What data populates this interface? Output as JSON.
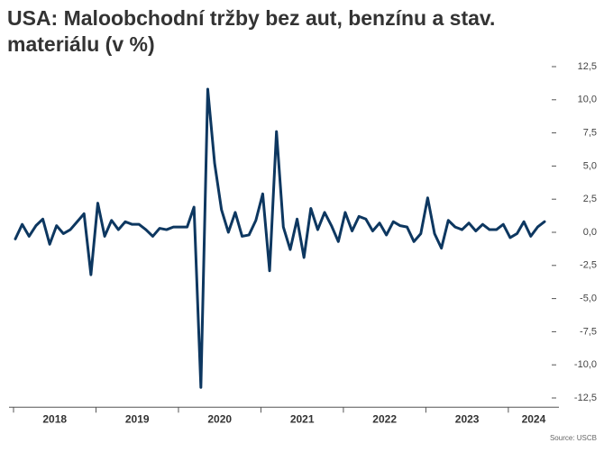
{
  "chart_data": {
    "type": "line",
    "title": "USA: Maloobchodní tržby bez aut, benzínu a stav. materiálu (v %)",
    "source": "Source: USCB",
    "categories": [
      "2018",
      null,
      null,
      null,
      null,
      null,
      null,
      null,
      null,
      null,
      null,
      null,
      "2019",
      null,
      null,
      null,
      null,
      null,
      null,
      null,
      null,
      null,
      null,
      null,
      "2020",
      null,
      null,
      null,
      null,
      null,
      null,
      null,
      null,
      null,
      null,
      null,
      "2021",
      null,
      null,
      null,
      null,
      null,
      null,
      null,
      null,
      null,
      null,
      null,
      "2022",
      null,
      null,
      null,
      null,
      null,
      null,
      null,
      null,
      null,
      null,
      null,
      "2023",
      null,
      null,
      null,
      null,
      null,
      null,
      null,
      null,
      null,
      null,
      null,
      "2024",
      null,
      null,
      null,
      null,
      null
    ],
    "values": [
      -0.5,
      0.6,
      -0.3,
      0.5,
      1.0,
      -0.9,
      0.5,
      -0.1,
      0.2,
      0.8,
      1.4,
      -3.2,
      2.2,
      -0.3,
      0.9,
      0.2,
      0.8,
      0.6,
      0.6,
      0.2,
      -0.3,
      0.3,
      0.2,
      0.4,
      0.4,
      0.4,
      1.9,
      -11.7,
      10.8,
      5.2,
      1.7,
      0.0,
      1.5,
      -0.3,
      -0.2,
      0.9,
      2.9,
      -2.9,
      7.6,
      0.4,
      -1.3,
      1.0,
      -1.9,
      1.8,
      0.2,
      1.5,
      0.5,
      -0.7,
      1.5,
      0.1,
      1.2,
      1.0,
      0.1,
      0.7,
      -0.2,
      0.8,
      0.5,
      0.4,
      -0.7,
      -0.1,
      2.6,
      -0.1,
      -1.2,
      0.9,
      0.4,
      0.2,
      0.7,
      0.1,
      0.6,
      0.2,
      0.2,
      0.6,
      -0.4,
      -0.1,
      0.8,
      -0.3,
      0.4,
      0.8
    ],
    "color": "#0d3760",
    "ylim": [
      -13.2,
      13.2
    ],
    "yticks": [
      {
        "value": 12.5,
        "label": "12,5"
      },
      {
        "value": 10,
        "label": "10,0"
      },
      {
        "value": 7.5,
        "label": "7,5"
      },
      {
        "value": 5,
        "label": "5,0"
      },
      {
        "value": 2.5,
        "label": "2,5"
      },
      {
        "value": 0,
        "label": "0,0"
      },
      {
        "value": -2.5,
        "label": "-2,5"
      },
      {
        "value": -5,
        "label": "-5,0"
      },
      {
        "value": -7.5,
        "label": "-7,5"
      },
      {
        "value": -10,
        "label": "-10,0"
      },
      {
        "value": -12.5,
        "label": "-12,5"
      }
    ]
  }
}
